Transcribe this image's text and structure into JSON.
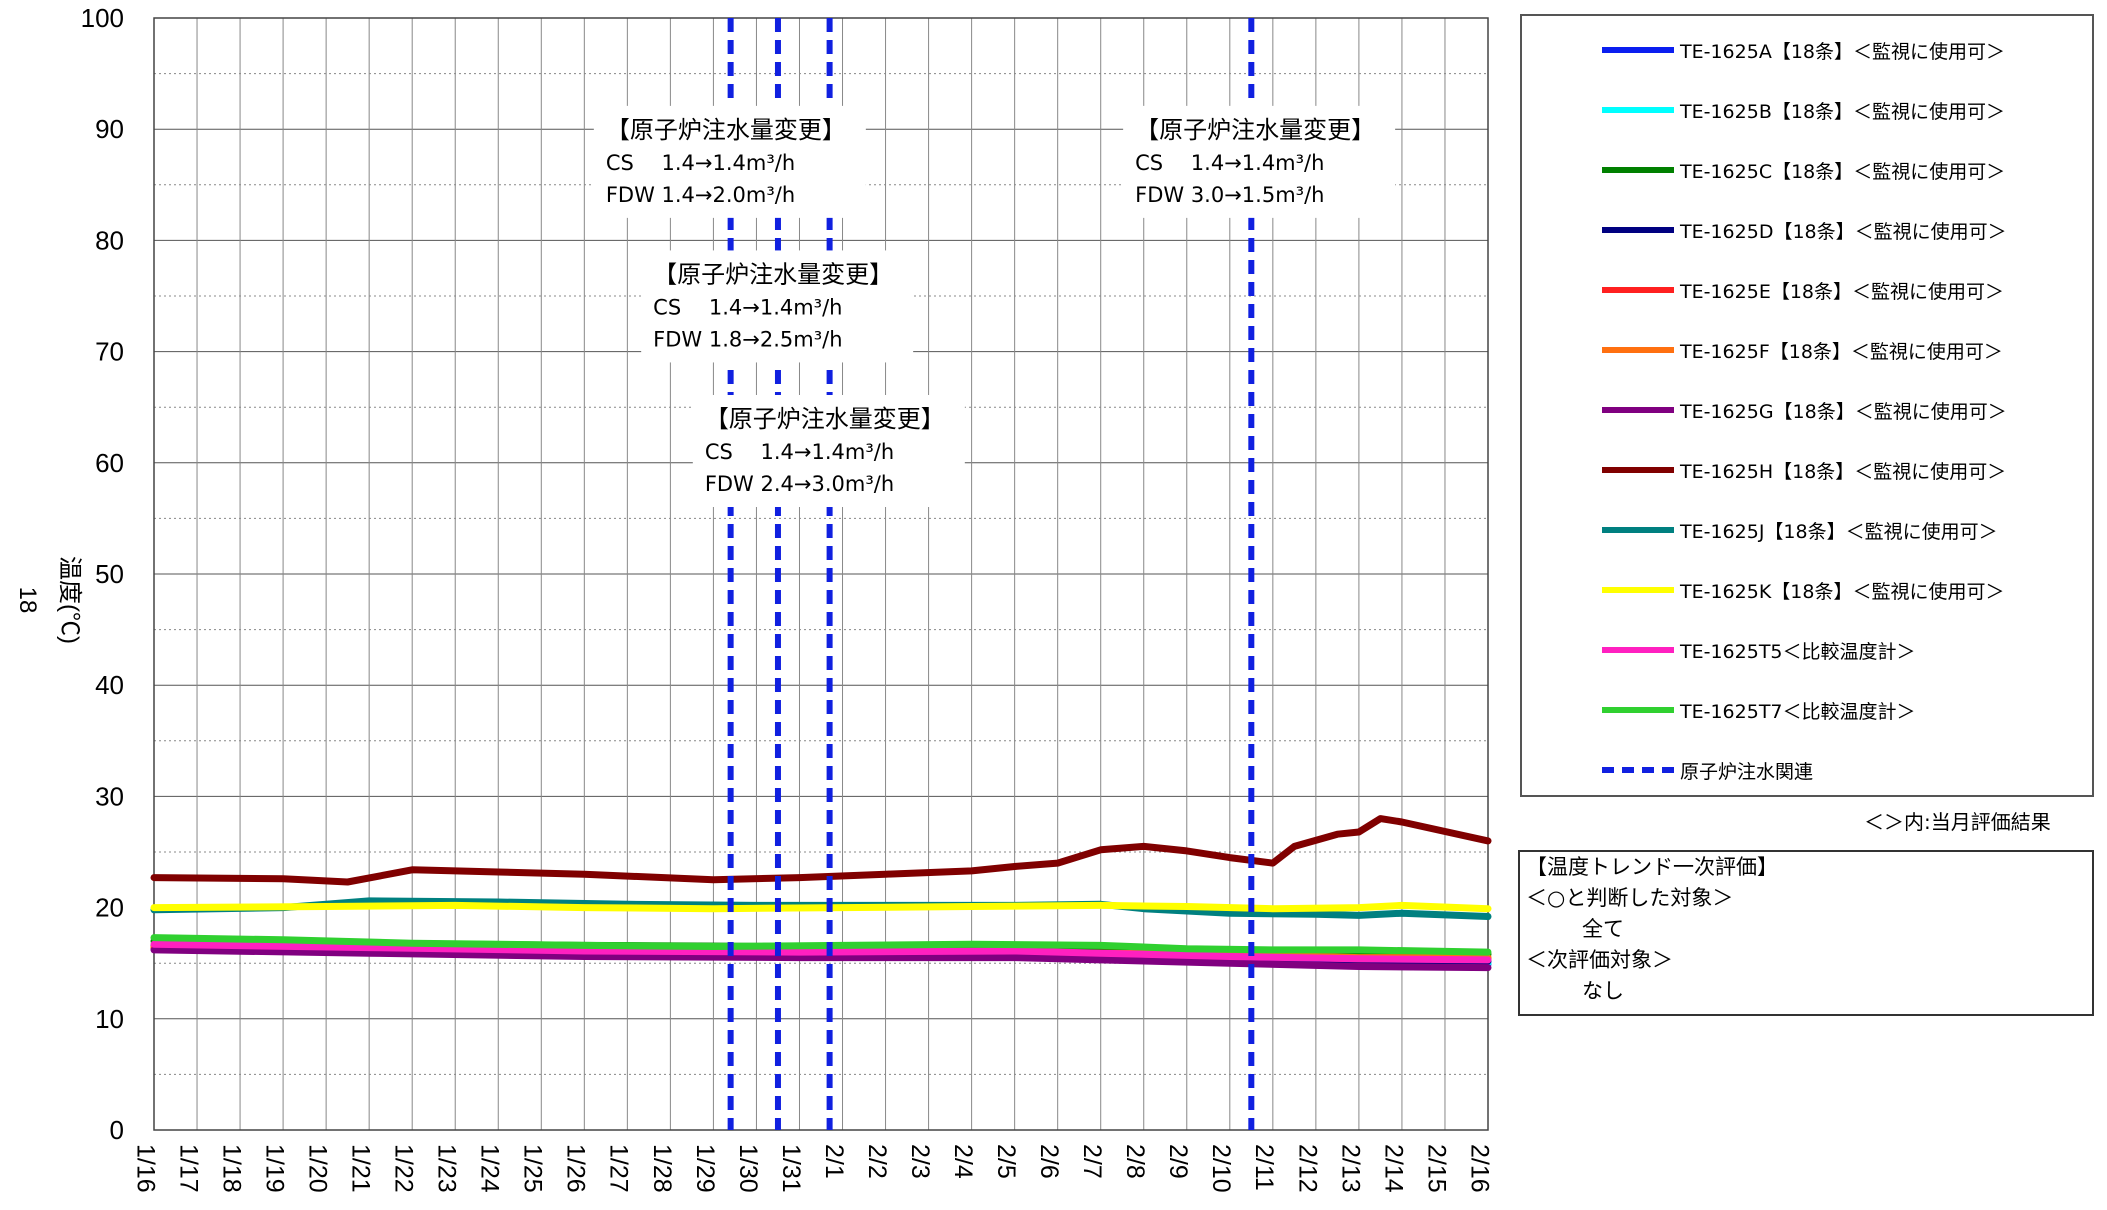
{
  "chart_data": {
    "type": "line",
    "title": "",
    "ylabel": "温度(℃)",
    "ylabel_prefix": "18",
    "ylim": [
      0,
      100
    ],
    "yticks": [
      0,
      10,
      20,
      30,
      40,
      50,
      60,
      70,
      80,
      90,
      100
    ],
    "x_ticks": [
      "1/16",
      "1/17",
      "1/18",
      "1/19",
      "1/20",
      "1/21",
      "1/22",
      "1/23",
      "1/24",
      "1/25",
      "1/26",
      "1/27",
      "1/28",
      "1/29",
      "1/30",
      "1/31",
      "2/1",
      "2/2",
      "2/3",
      "2/4",
      "2/5",
      "2/6",
      "2/7",
      "2/8",
      "2/9",
      "2/10",
      "2/11",
      "2/12",
      "2/13",
      "2/14",
      "2/15",
      "2/16"
    ],
    "grid": true,
    "x_unit": "day index from 1/16",
    "series": [
      {
        "name": "TE-1625A【18条】＜監視に使用可＞",
        "color": "#0a1ef0",
        "x": [
          0,
          5,
          10,
          15,
          20,
          22,
          25,
          28,
          31
        ],
        "y": [
          16.3,
          16.0,
          15.8,
          15.7,
          15.8,
          15.6,
          15.2,
          14.9,
          14.9
        ]
      },
      {
        "name": "TE-1625B【18条】＜監視に使用可＞",
        "color": "#00ffff",
        "x": [
          0,
          5,
          10,
          15,
          20,
          22,
          25,
          28,
          31
        ],
        "y": [
          16.5,
          16.2,
          16.0,
          15.9,
          16.0,
          15.8,
          15.4,
          15.1,
          15.0
        ]
      },
      {
        "name": "TE-1625C【18条】＜監視に使用可＞",
        "color": "#008000",
        "x": [
          0,
          5,
          10,
          15,
          20,
          22,
          25,
          28,
          31
        ],
        "y": [
          17.0,
          16.8,
          16.6,
          16.5,
          16.5,
          16.3,
          16.0,
          15.8,
          15.8
        ]
      },
      {
        "name": "TE-1625D【18条】＜監視に使用可＞",
        "color": "#000080",
        "x": [
          0,
          5,
          10,
          15,
          20,
          22,
          25,
          28,
          31
        ],
        "y": [
          16.6,
          16.3,
          16.0,
          15.9,
          16.0,
          15.7,
          15.4,
          15.2,
          15.2
        ]
      },
      {
        "name": "TE-1625E【18条】＜監視に使用可＞",
        "color": "#ff2020",
        "x": [
          0,
          5,
          10,
          15,
          20,
          22,
          25,
          28,
          31
        ],
        "y": [
          16.4,
          16.2,
          16.0,
          15.9,
          16.0,
          15.8,
          15.7,
          15.4,
          15.4
        ]
      },
      {
        "name": "TE-1625F【18条】＜監視に使用可＞",
        "color": "#ff7010",
        "x": [
          0,
          5,
          10,
          15,
          20,
          22,
          25,
          28,
          31
        ],
        "y": [
          16.5,
          16.3,
          16.1,
          16.0,
          16.0,
          15.9,
          15.8,
          15.5,
          15.5
        ]
      },
      {
        "name": "TE-1625G【18条】＜監視に使用可＞",
        "color": "#800080",
        "x": [
          0,
          5,
          10,
          15,
          20,
          22,
          25,
          28,
          31
        ],
        "y": [
          16.2,
          15.9,
          15.6,
          15.5,
          15.5,
          15.3,
          15.0,
          14.7,
          14.6
        ]
      },
      {
        "name": "TE-1625H【18条】＜監視に使用可＞",
        "color": "#800000",
        "x": [
          0,
          3,
          4.5,
          6,
          8,
          10,
          13,
          15,
          17,
          19,
          20,
          21,
          22,
          23,
          24,
          25,
          26,
          26.5,
          27.5,
          28,
          28.5,
          29,
          31
        ],
        "y": [
          22.7,
          22.6,
          22.3,
          23.4,
          23.2,
          23.0,
          22.5,
          22.7,
          23.0,
          23.3,
          23.7,
          24.0,
          25.2,
          25.5,
          25.1,
          24.5,
          24.0,
          25.5,
          26.6,
          26.8,
          28.0,
          27.7,
          26.0
        ]
      },
      {
        "name": "TE-1625J【18条】＜監視に使用可＞",
        "color": "#008080",
        "x": [
          0,
          3,
          5,
          8,
          11,
          14,
          17,
          20,
          22,
          23,
          25,
          27,
          28,
          29,
          31
        ],
        "y": [
          19.8,
          20.0,
          20.6,
          20.5,
          20.3,
          20.2,
          20.2,
          20.2,
          20.3,
          19.9,
          19.5,
          19.4,
          19.3,
          19.5,
          19.2
        ]
      },
      {
        "name": "TE-1625K【18条】＜監視に使用可＞",
        "color": "#ffff00",
        "x": [
          0,
          4,
          7,
          10,
          13,
          16,
          19,
          22,
          24,
          26,
          28,
          29,
          31
        ],
        "y": [
          20.0,
          20.1,
          20.2,
          20.0,
          19.9,
          20.0,
          20.1,
          20.2,
          20.1,
          19.9,
          20.0,
          20.2,
          19.9
        ]
      },
      {
        "name": "TE-1625T5＜比較温度計＞",
        "color": "#ff20c0",
        "x": [
          0,
          5,
          10,
          15,
          20,
          22,
          25,
          28,
          31
        ],
        "y": [
          16.7,
          16.4,
          16.1,
          16.0,
          16.1,
          15.9,
          15.6,
          15.4,
          15.3
        ]
      },
      {
        "name": "TE-1625T7＜比較温度計＞",
        "color": "#30d030",
        "x": [
          0,
          3,
          6,
          10,
          13,
          16,
          19,
          22,
          24,
          26,
          28,
          31
        ],
        "y": [
          17.3,
          17.1,
          16.8,
          16.6,
          16.5,
          16.6,
          16.7,
          16.6,
          16.3,
          16.2,
          16.2,
          16.0
        ]
      }
    ],
    "event_lines": {
      "name": "原子炉注水関連",
      "color": "#1020e0",
      "x": [
        13.4,
        14.5,
        15.7,
        25.5
      ]
    },
    "annotations": [
      {
        "x": 10.5,
        "y": 88.5,
        "lines": [
          "【原子炉注水量変更】",
          "CS　 1.4→1.4m³/h",
          "FDW  1.4→2.0m³/h"
        ]
      },
      {
        "x": 11.6,
        "y": 75.5,
        "lines": [
          "【原子炉注水量変更】",
          "CS　 1.4→1.4m³/h",
          "FDW  1.8→2.5m³/h"
        ]
      },
      {
        "x": 12.8,
        "y": 62.5,
        "lines": [
          "【原子炉注水量変更】",
          "CS　 1.4→1.4m³/h",
          "FDW  2.4→3.0m³/h"
        ]
      },
      {
        "x": 22.8,
        "y": 88.5,
        "lines": [
          "【原子炉注水量変更】",
          "CS　 1.4→1.4m³/h",
          "FDW  3.0→1.5m³/h"
        ]
      }
    ],
    "legend_placement": "right"
  },
  "legend_note": "＜＞内:当月評価結果",
  "evaluation": {
    "heading": "【温度トレンド一次評価】",
    "ok_label": "＜○と判断した対象＞",
    "ok_value": "全て",
    "next_label": "＜次評価対象＞",
    "next_value": "なし"
  }
}
